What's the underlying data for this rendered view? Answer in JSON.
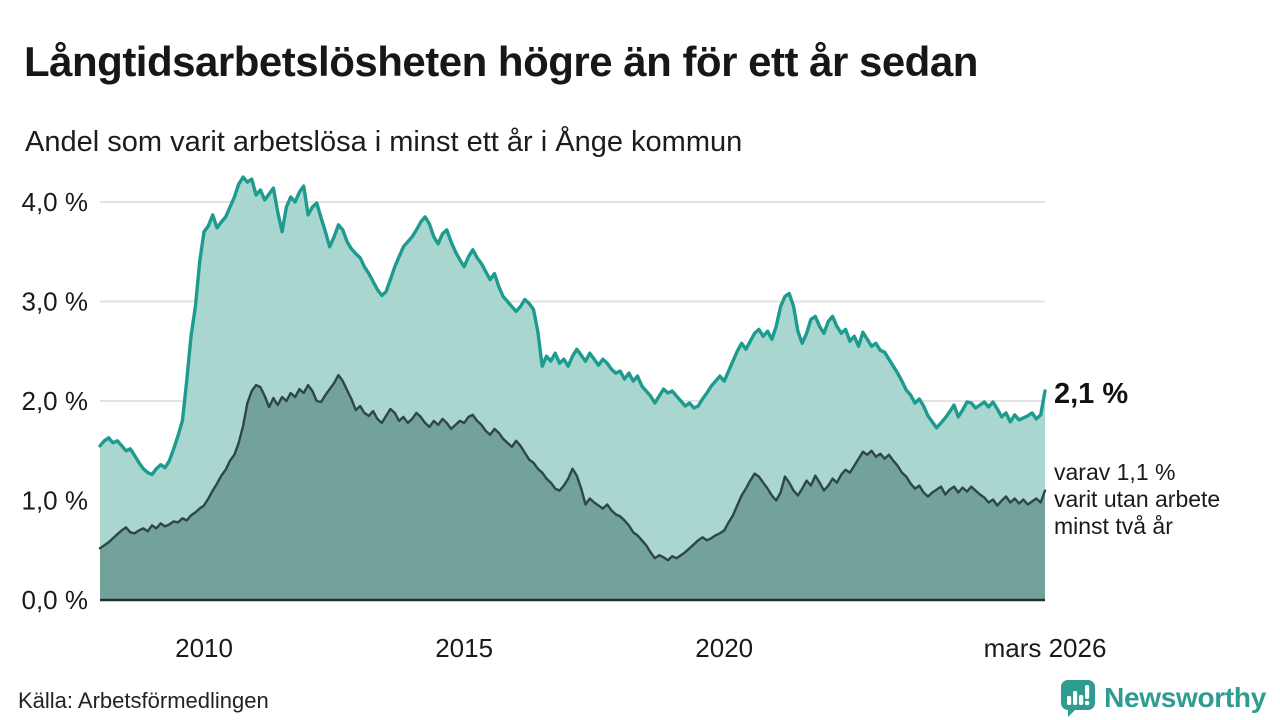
{
  "header": {
    "title": "Långtidsarbetslösheten högre än för ett år sedan",
    "subtitle": "Andel som varit arbetslösa i minst ett år i Ånge kommun"
  },
  "annotations": {
    "latest_value": "2,1 %",
    "note_lines": [
      "varav 1,1 %",
      "varit utan arbete",
      "minst två år"
    ]
  },
  "source": {
    "text": "Källa: Arbetsförmedlingen"
  },
  "branding": {
    "name": "Newsworthy",
    "color": "#2f9c90"
  },
  "chart_data": {
    "type": "area",
    "title": "Långtidsarbetslösheten högre än för ett år sedan",
    "subtitle": "Andel som varit arbetslösa i minst ett år i Ånge kommun",
    "unit": "%",
    "x_start": 2008.0,
    "x_end": 2026.1667,
    "x_step_months": 1,
    "ylim": [
      0,
      4.5
    ],
    "grid": true,
    "legend_position": "none",
    "colors": {
      "grid": "#e3e3e3",
      "baseline": "#21322e",
      "text": "#1a1a1a"
    },
    "yticks": [
      {
        "value": 0,
        "label": "0,0 %"
      },
      {
        "value": 1,
        "label": "1,0 %"
      },
      {
        "value": 2,
        "label": "2,0 %"
      },
      {
        "value": 3,
        "label": "3,0 %"
      },
      {
        "value": 4,
        "label": "4,0 %"
      }
    ],
    "xticks": [
      {
        "value": 2010,
        "label": "2010"
      },
      {
        "value": 2015,
        "label": "2015"
      },
      {
        "value": 2020,
        "label": "2020"
      },
      {
        "value": 2026.1667,
        "label": "mars 2026"
      }
    ],
    "series": [
      {
        "name": "Arbetslösa minst ett år",
        "color": "#1e9b8f",
        "fill": "#a9d7cf",
        "last_value": 2.1,
        "last_value_label": "2,1 %",
        "values": [
          1.55,
          1.6,
          1.63,
          1.58,
          1.6,
          1.55,
          1.5,
          1.52,
          1.45,
          1.38,
          1.32,
          1.28,
          1.26,
          1.32,
          1.36,
          1.33,
          1.4,
          1.52,
          1.65,
          1.8,
          2.2,
          2.65,
          2.95,
          3.4,
          3.7,
          3.76,
          3.87,
          3.74,
          3.8,
          3.85,
          3.95,
          4.05,
          4.18,
          4.25,
          4.2,
          4.23,
          4.07,
          4.12,
          4.02,
          4.08,
          4.14,
          3.9,
          3.7,
          3.95,
          4.05,
          4.0,
          4.1,
          4.16,
          3.87,
          3.95,
          3.99,
          3.84,
          3.7,
          3.55,
          3.65,
          3.77,
          3.72,
          3.6,
          3.53,
          3.48,
          3.44,
          3.35,
          3.28,
          3.2,
          3.12,
          3.06,
          3.1,
          3.22,
          3.35,
          3.45,
          3.55,
          3.6,
          3.65,
          3.72,
          3.8,
          3.85,
          3.78,
          3.65,
          3.58,
          3.68,
          3.72,
          3.6,
          3.5,
          3.42,
          3.35,
          3.45,
          3.52,
          3.44,
          3.38,
          3.3,
          3.22,
          3.28,
          3.15,
          3.05,
          3.0,
          2.95,
          2.9,
          2.95,
          3.02,
          2.98,
          2.92,
          2.7,
          2.35,
          2.45,
          2.4,
          2.48,
          2.38,
          2.42,
          2.35,
          2.45,
          2.52,
          2.46,
          2.4,
          2.48,
          2.42,
          2.36,
          2.42,
          2.38,
          2.32,
          2.28,
          2.3,
          2.22,
          2.28,
          2.2,
          2.25,
          2.15,
          2.1,
          2.05,
          1.98,
          2.05,
          2.12,
          2.08,
          2.1,
          2.05,
          2.0,
          1.95,
          1.98,
          1.93,
          1.95,
          2.02,
          2.08,
          2.15,
          2.2,
          2.25,
          2.2,
          2.3,
          2.4,
          2.5,
          2.58,
          2.52,
          2.6,
          2.68,
          2.72,
          2.65,
          2.7,
          2.62,
          2.75,
          2.95,
          3.05,
          3.08,
          2.95,
          2.7,
          2.58,
          2.68,
          2.82,
          2.85,
          2.75,
          2.68,
          2.8,
          2.85,
          2.75,
          2.68,
          2.72,
          2.6,
          2.65,
          2.55,
          2.69,
          2.62,
          2.55,
          2.58,
          2.51,
          2.49,
          2.42,
          2.35,
          2.28,
          2.2,
          2.11,
          2.06,
          1.98,
          2.02,
          1.95,
          1.85,
          1.79,
          1.73,
          1.78,
          1.83,
          1.89,
          1.96,
          1.84,
          1.91,
          1.99,
          1.98,
          1.93,
          1.96,
          1.99,
          1.94,
          1.99,
          1.92,
          1.84,
          1.88,
          1.79,
          1.86,
          1.81,
          1.83,
          1.85,
          1.88,
          1.82,
          1.86,
          2.1
        ]
      },
      {
        "name": "Arbetslösa minst två år",
        "color": "#2e4744",
        "fill": "#73a29a",
        "last_value": 1.1,
        "last_value_label": "1,1 %",
        "values": [
          0.52,
          0.55,
          0.58,
          0.62,
          0.66,
          0.7,
          0.73,
          0.68,
          0.67,
          0.7,
          0.72,
          0.69,
          0.75,
          0.72,
          0.77,
          0.74,
          0.76,
          0.79,
          0.78,
          0.82,
          0.8,
          0.85,
          0.88,
          0.92,
          0.95,
          1.02,
          1.1,
          1.17,
          1.25,
          1.31,
          1.4,
          1.46,
          1.58,
          1.75,
          1.98,
          2.1,
          2.16,
          2.14,
          2.05,
          1.94,
          2.03,
          1.96,
          2.04,
          2.0,
          2.08,
          2.04,
          2.12,
          2.08,
          2.16,
          2.1,
          2.0,
          1.99,
          2.06,
          2.12,
          2.18,
          2.26,
          2.2,
          2.11,
          2.02,
          1.91,
          1.95,
          1.88,
          1.85,
          1.9,
          1.82,
          1.78,
          1.85,
          1.92,
          1.88,
          1.8,
          1.84,
          1.78,
          1.82,
          1.88,
          1.84,
          1.78,
          1.74,
          1.8,
          1.76,
          1.82,
          1.78,
          1.72,
          1.76,
          1.8,
          1.78,
          1.84,
          1.86,
          1.8,
          1.76,
          1.7,
          1.66,
          1.72,
          1.68,
          1.62,
          1.58,
          1.54,
          1.6,
          1.55,
          1.48,
          1.41,
          1.38,
          1.32,
          1.28,
          1.22,
          1.18,
          1.12,
          1.1,
          1.15,
          1.22,
          1.32,
          1.25,
          1.12,
          0.96,
          1.02,
          0.98,
          0.95,
          0.92,
          0.96,
          0.9,
          0.86,
          0.84,
          0.8,
          0.75,
          0.68,
          0.65,
          0.6,
          0.55,
          0.48,
          0.42,
          0.45,
          0.43,
          0.4,
          0.44,
          0.42,
          0.45,
          0.48,
          0.52,
          0.56,
          0.6,
          0.63,
          0.6,
          0.62,
          0.65,
          0.67,
          0.7,
          0.78,
          0.85,
          0.95,
          1.05,
          1.12,
          1.2,
          1.27,
          1.24,
          1.18,
          1.12,
          1.05,
          1.0,
          1.08,
          1.24,
          1.18,
          1.1,
          1.05,
          1.12,
          1.2,
          1.15,
          1.25,
          1.18,
          1.1,
          1.15,
          1.22,
          1.18,
          1.26,
          1.31,
          1.28,
          1.35,
          1.42,
          1.49,
          1.46,
          1.5,
          1.44,
          1.47,
          1.42,
          1.46,
          1.4,
          1.35,
          1.28,
          1.24,
          1.17,
          1.12,
          1.15,
          1.08,
          1.04,
          1.08,
          1.11,
          1.14,
          1.06,
          1.11,
          1.14,
          1.08,
          1.13,
          1.09,
          1.14,
          1.1,
          1.06,
          1.03,
          0.98,
          1.01,
          0.95,
          1.0,
          1.04,
          0.98,
          1.02,
          0.97,
          1.01,
          0.96,
          0.99,
          1.02,
          0.98,
          1.1
        ]
      }
    ]
  }
}
